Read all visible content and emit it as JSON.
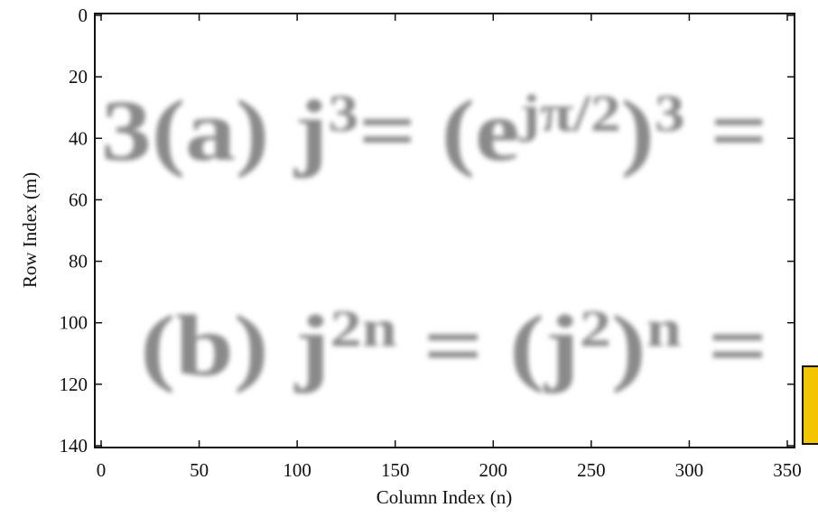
{
  "chart_data": {
    "type": "image",
    "xlabel": "Column Index (n)",
    "ylabel": "Row Index (m)",
    "xlim": [
      0,
      350
    ],
    "ylim": [
      0,
      140
    ],
    "y_inverted": true,
    "xticks": [
      0,
      50,
      100,
      150,
      200,
      250,
      300,
      350
    ],
    "yticks": [
      0,
      20,
      40,
      60,
      80,
      100,
      120,
      140
    ],
    "image_text": [
      {
        "x": 0,
        "y": 47,
        "x_end": 340,
        "pieces": [
          {
            "text": "3(a)"
          },
          {
            "text": "  j"
          },
          {
            "text": "3",
            "sup": true
          },
          {
            "text": "= (e"
          },
          {
            "text": "jπ/2",
            "sup": true
          },
          {
            "text": ")"
          },
          {
            "text": "3",
            "sup": true
          },
          {
            "text": " ="
          }
        ]
      },
      {
        "x": 20,
        "y": 117,
        "x_end": 340,
        "pieces": [
          {
            "text": "(b)"
          },
          {
            "text": "  j"
          },
          {
            "text": "2n",
            "sup": true
          },
          {
            "text": " = (j"
          },
          {
            "text": "2",
            "sup": true
          },
          {
            "text": ")"
          },
          {
            "text": "n",
            "sup": true
          },
          {
            "text": " ="
          }
        ]
      }
    ]
  }
}
